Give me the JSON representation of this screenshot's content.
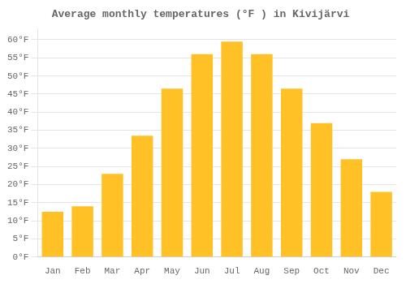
{
  "chart_data": {
    "type": "bar",
    "title": "Average monthly temperatures (°F ) in Kivijärvi",
    "categories": [
      "Jan",
      "Feb",
      "Mar",
      "Apr",
      "May",
      "Jun",
      "Jul",
      "Aug",
      "Sep",
      "Oct",
      "Nov",
      "Dec"
    ],
    "values": [
      12.5,
      14.0,
      23.0,
      33.5,
      46.5,
      56.0,
      59.5,
      56.0,
      46.5,
      37.0,
      27.0,
      18.0
    ],
    "color": "#FFC125",
    "ylim": [
      0,
      63
    ],
    "yticks": [
      {
        "value": 0,
        "label": "0°F"
      },
      {
        "value": 5,
        "label": "5°F"
      },
      {
        "value": 10,
        "label": "10°F"
      },
      {
        "value": 15,
        "label": "15°F"
      },
      {
        "value": 20,
        "label": "20°F"
      },
      {
        "value": 25,
        "label": "25°F"
      },
      {
        "value": 30,
        "label": "30°F"
      },
      {
        "value": 35,
        "label": "35°F"
      },
      {
        "value": 40,
        "label": "40°F"
      },
      {
        "value": 45,
        "label": "45°F"
      },
      {
        "value": 50,
        "label": "50°F"
      },
      {
        "value": 55,
        "label": "55°F"
      },
      {
        "value": 60,
        "label": "60°F"
      }
    ],
    "grid": true
  }
}
